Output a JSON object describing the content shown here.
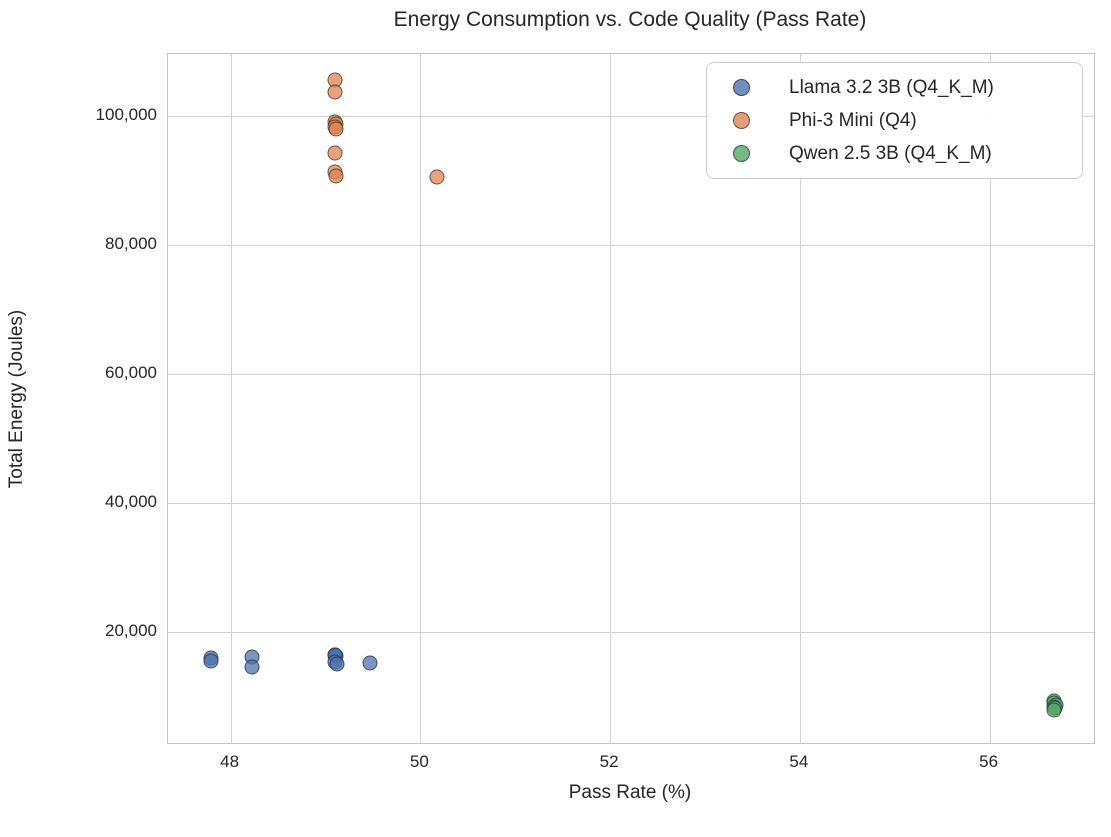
{
  "title": "Energy Consumption vs. Code Quality (Pass Rate)",
  "chart_data": {
    "type": "scatter",
    "title": "Energy Consumption vs. Code Quality (Pass Rate)",
    "xlabel": "Pass Rate (%)",
    "ylabel": "Total Energy (Joules)",
    "xlim": [
      47.34,
      57.1
    ],
    "ylim": [
      2800,
      109600
    ],
    "grid": true,
    "legend_position": "upper right",
    "x_ticks": [
      {
        "value": 48,
        "label": "48"
      },
      {
        "value": 50,
        "label": "50"
      },
      {
        "value": 52,
        "label": "52"
      },
      {
        "value": 54,
        "label": "54"
      },
      {
        "value": 56,
        "label": "56"
      }
    ],
    "y_ticks": [
      {
        "value": 20000,
        "label": "20,000"
      },
      {
        "value": 40000,
        "label": "40,000"
      },
      {
        "value": 60000,
        "label": "60,000"
      },
      {
        "value": 80000,
        "label": "80,000"
      },
      {
        "value": 100000,
        "label": "100,000"
      }
    ],
    "series": [
      {
        "name": "Llama 3.2 3B (Q4_K_M)",
        "color": "#4C72B0",
        "points": [
          [
            47.79,
            15900
          ],
          [
            47.79,
            15570
          ],
          [
            48.23,
            16150
          ],
          [
            48.23,
            14650
          ],
          [
            49.1,
            16450
          ],
          [
            49.11,
            16280
          ],
          [
            49.1,
            16380
          ],
          [
            49.1,
            15280
          ],
          [
            49.12,
            15120
          ],
          [
            49.47,
            15200
          ]
        ]
      },
      {
        "name": "Phi-3 Mini (Q4)",
        "color": "#DD8452",
        "points": [
          [
            49.1,
            105500
          ],
          [
            49.1,
            103700
          ],
          [
            49.1,
            99000
          ],
          [
            49.11,
            98700
          ],
          [
            49.1,
            98300
          ],
          [
            49.11,
            97900
          ],
          [
            49.1,
            94200
          ],
          [
            49.1,
            91300
          ],
          [
            49.11,
            90700
          ],
          [
            50.17,
            90500
          ]
        ]
      },
      {
        "name": "Qwen 2.5 3B (Q4_K_M)",
        "color": "#55A868",
        "points": [
          [
            56.68,
            9350
          ],
          [
            56.68,
            9000
          ],
          [
            56.7,
            8700
          ],
          [
            56.68,
            8400
          ],
          [
            56.69,
            8150
          ],
          [
            56.68,
            7950
          ]
        ]
      }
    ],
    "style": {
      "grid_color": "#d2d2d2",
      "spine_color": "#c3c3c3",
      "text_color": "#262626",
      "marker_alpha": 0.75,
      "marker_edge": "rgba(25,25,25,0.6)"
    }
  }
}
